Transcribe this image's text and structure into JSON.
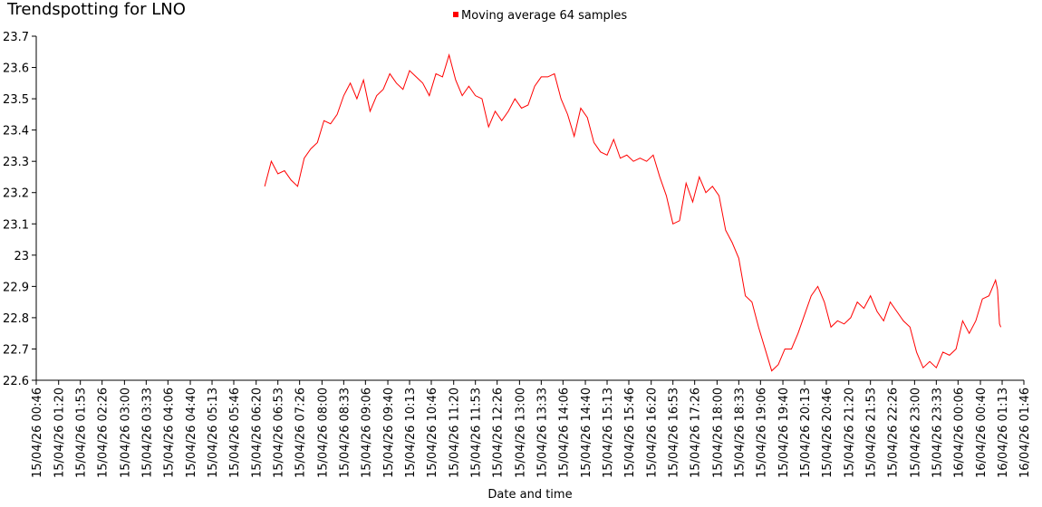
{
  "chart_data": {
    "type": "line",
    "title": "Trendspotting for LNO",
    "x_label": "Date and time",
    "x": [
      "15/04/26 06:33",
      "15/04/26 06:43",
      "15/04/26 06:53",
      "15/04/26 07:03",
      "15/04/26 07:13",
      "15/04/26 07:23",
      "15/04/26 07:33",
      "15/04/26 07:43",
      "15/04/26 07:53",
      "15/04/26 08:03",
      "15/04/26 08:13",
      "15/04/26 08:23",
      "15/04/26 08:33",
      "15/04/26 08:43",
      "15/04/26 08:53",
      "15/04/26 09:03",
      "15/04/26 09:13",
      "15/04/26 09:23",
      "15/04/26 09:33",
      "15/04/26 09:43",
      "15/04/26 09:53",
      "15/04/26 10:03",
      "15/04/26 10:13",
      "15/04/26 10:23",
      "15/04/26 10:33",
      "15/04/26 10:43",
      "15/04/26 10:53",
      "15/04/26 11:03",
      "15/04/26 11:13",
      "15/04/26 11:23",
      "15/04/26 11:33",
      "15/04/26 11:43",
      "15/04/26 11:53",
      "15/04/26 12:03",
      "15/04/26 12:13",
      "15/04/26 12:23",
      "15/04/26 12:33",
      "15/04/26 12:43",
      "15/04/26 12:53",
      "15/04/26 13:03",
      "15/04/26 13:13",
      "15/04/26 13:23",
      "15/04/26 13:33",
      "15/04/26 13:43",
      "15/04/26 13:53",
      "15/04/26 14:03",
      "15/04/26 14:13",
      "15/04/26 14:23",
      "15/04/26 14:33",
      "15/04/26 14:43",
      "15/04/26 14:53",
      "15/04/26 15:03",
      "15/04/26 15:13",
      "15/04/26 15:23",
      "15/04/26 15:33",
      "15/04/26 15:43",
      "15/04/26 15:53",
      "15/04/26 16:03",
      "15/04/26 16:13",
      "15/04/26 16:23",
      "15/04/26 16:33",
      "15/04/26 16:43",
      "15/04/26 16:53",
      "15/04/26 17:03",
      "15/04/26 17:13",
      "15/04/26 17:23",
      "15/04/26 17:33",
      "15/04/26 17:43",
      "15/04/26 17:53",
      "15/04/26 18:03",
      "15/04/26 18:13",
      "15/04/26 18:23",
      "15/04/26 18:33",
      "15/04/26 18:43",
      "15/04/26 18:53",
      "15/04/26 19:03",
      "15/04/26 19:13",
      "15/04/26 19:23",
      "15/04/26 19:33",
      "15/04/26 19:43",
      "15/04/26 19:53",
      "15/04/26 20:03",
      "15/04/26 20:13",
      "15/04/26 20:23",
      "15/04/26 20:33",
      "15/04/26 20:43",
      "15/04/26 20:53",
      "15/04/26 21:03",
      "15/04/26 21:13",
      "15/04/26 21:23",
      "15/04/26 21:33",
      "15/04/26 21:43",
      "15/04/26 21:53",
      "15/04/26 22:03",
      "15/04/26 22:13",
      "15/04/26 22:23",
      "15/04/26 22:33",
      "15/04/26 22:43",
      "15/04/26 22:53",
      "15/04/26 23:03",
      "15/04/26 23:13",
      "15/04/26 23:23",
      "15/04/26 23:33",
      "15/04/26 23:43",
      "15/04/26 23:53",
      "16/04/26 00:03",
      "16/04/26 00:13",
      "16/04/26 00:23",
      "16/04/26 00:33",
      "16/04/26 00:43",
      "16/04/26 00:53",
      "16/04/26 01:03",
      "16/04/26 01:06",
      "16/04/26 01:09",
      "16/04/26 01:11"
    ],
    "series": [
      {
        "name": "Moving average 64 samples",
        "color": "#ff0000",
        "values": [
          23.22,
          23.3,
          23.26,
          23.27,
          23.24,
          23.22,
          23.31,
          23.34,
          23.36,
          23.43,
          23.42,
          23.45,
          23.51,
          23.55,
          23.5,
          23.56,
          23.46,
          23.51,
          23.53,
          23.58,
          23.55,
          23.53,
          23.59,
          23.57,
          23.55,
          23.51,
          23.58,
          23.57,
          23.64,
          23.56,
          23.51,
          23.54,
          23.51,
          23.5,
          23.41,
          23.46,
          23.43,
          23.46,
          23.5,
          23.47,
          23.48,
          23.54,
          23.57,
          23.57,
          23.58,
          23.5,
          23.45,
          23.38,
          23.47,
          23.44,
          23.36,
          23.33,
          23.32,
          23.37,
          23.31,
          23.32,
          23.3,
          23.31,
          23.3,
          23.32,
          23.25,
          23.19,
          23.1,
          23.11,
          23.23,
          23.17,
          23.25,
          23.2,
          23.22,
          23.19,
          23.08,
          23.04,
          22.99,
          22.87,
          22.85,
          22.77,
          22.7,
          22.63,
          22.65,
          22.7,
          22.7,
          22.75,
          22.81,
          22.87,
          22.9,
          22.85,
          22.77,
          22.79,
          22.78,
          22.8,
          22.85,
          22.83,
          22.87,
          22.82,
          22.79,
          22.85,
          22.82,
          22.79,
          22.77,
          22.69,
          22.64,
          22.66,
          22.64,
          22.69,
          22.68,
          22.7,
          22.79,
          22.75,
          22.79,
          22.86,
          22.87,
          22.92,
          22.89,
          22.78,
          22.77
        ]
      }
    ],
    "xlim": [
      "15/04/26 00:46",
      "16/04/26 01:46"
    ],
    "xticks": [
      "15/04/26 00:46",
      "15/04/26 01:20",
      "15/04/26 01:53",
      "15/04/26 02:26",
      "15/04/26 03:00",
      "15/04/26 03:33",
      "15/04/26 04:06",
      "15/04/26 04:40",
      "15/04/26 05:13",
      "15/04/26 05:46",
      "15/04/26 06:20",
      "15/04/26 06:53",
      "15/04/26 07:26",
      "15/04/26 08:00",
      "15/04/26 08:33",
      "15/04/26 09:06",
      "15/04/26 09:40",
      "15/04/26 10:13",
      "15/04/26 10:46",
      "15/04/26 11:20",
      "15/04/26 11:53",
      "15/04/26 12:26",
      "15/04/26 13:00",
      "15/04/26 13:33",
      "15/04/26 14:06",
      "15/04/26 14:40",
      "15/04/26 15:13",
      "15/04/26 15:46",
      "15/04/26 16:20",
      "15/04/26 16:53",
      "15/04/26 17:26",
      "15/04/26 18:00",
      "15/04/26 18:33",
      "15/04/26 19:06",
      "15/04/26 19:40",
      "15/04/26 20:13",
      "15/04/26 20:46",
      "15/04/26 21:20",
      "15/04/26 21:53",
      "15/04/26 22:26",
      "15/04/26 23:00",
      "15/04/26 23:33",
      "16/04/26 00:06",
      "16/04/26 00:40",
      "16/04/26 01:13",
      "16/04/26 01:46"
    ],
    "ylim": [
      22.6,
      23.7
    ],
    "yticks": [
      22.6,
      22.7,
      22.8,
      22.9,
      23,
      23.1,
      23.2,
      23.3,
      23.4,
      23.5,
      23.6,
      23.7
    ],
    "grid": false,
    "legend": "top"
  }
}
